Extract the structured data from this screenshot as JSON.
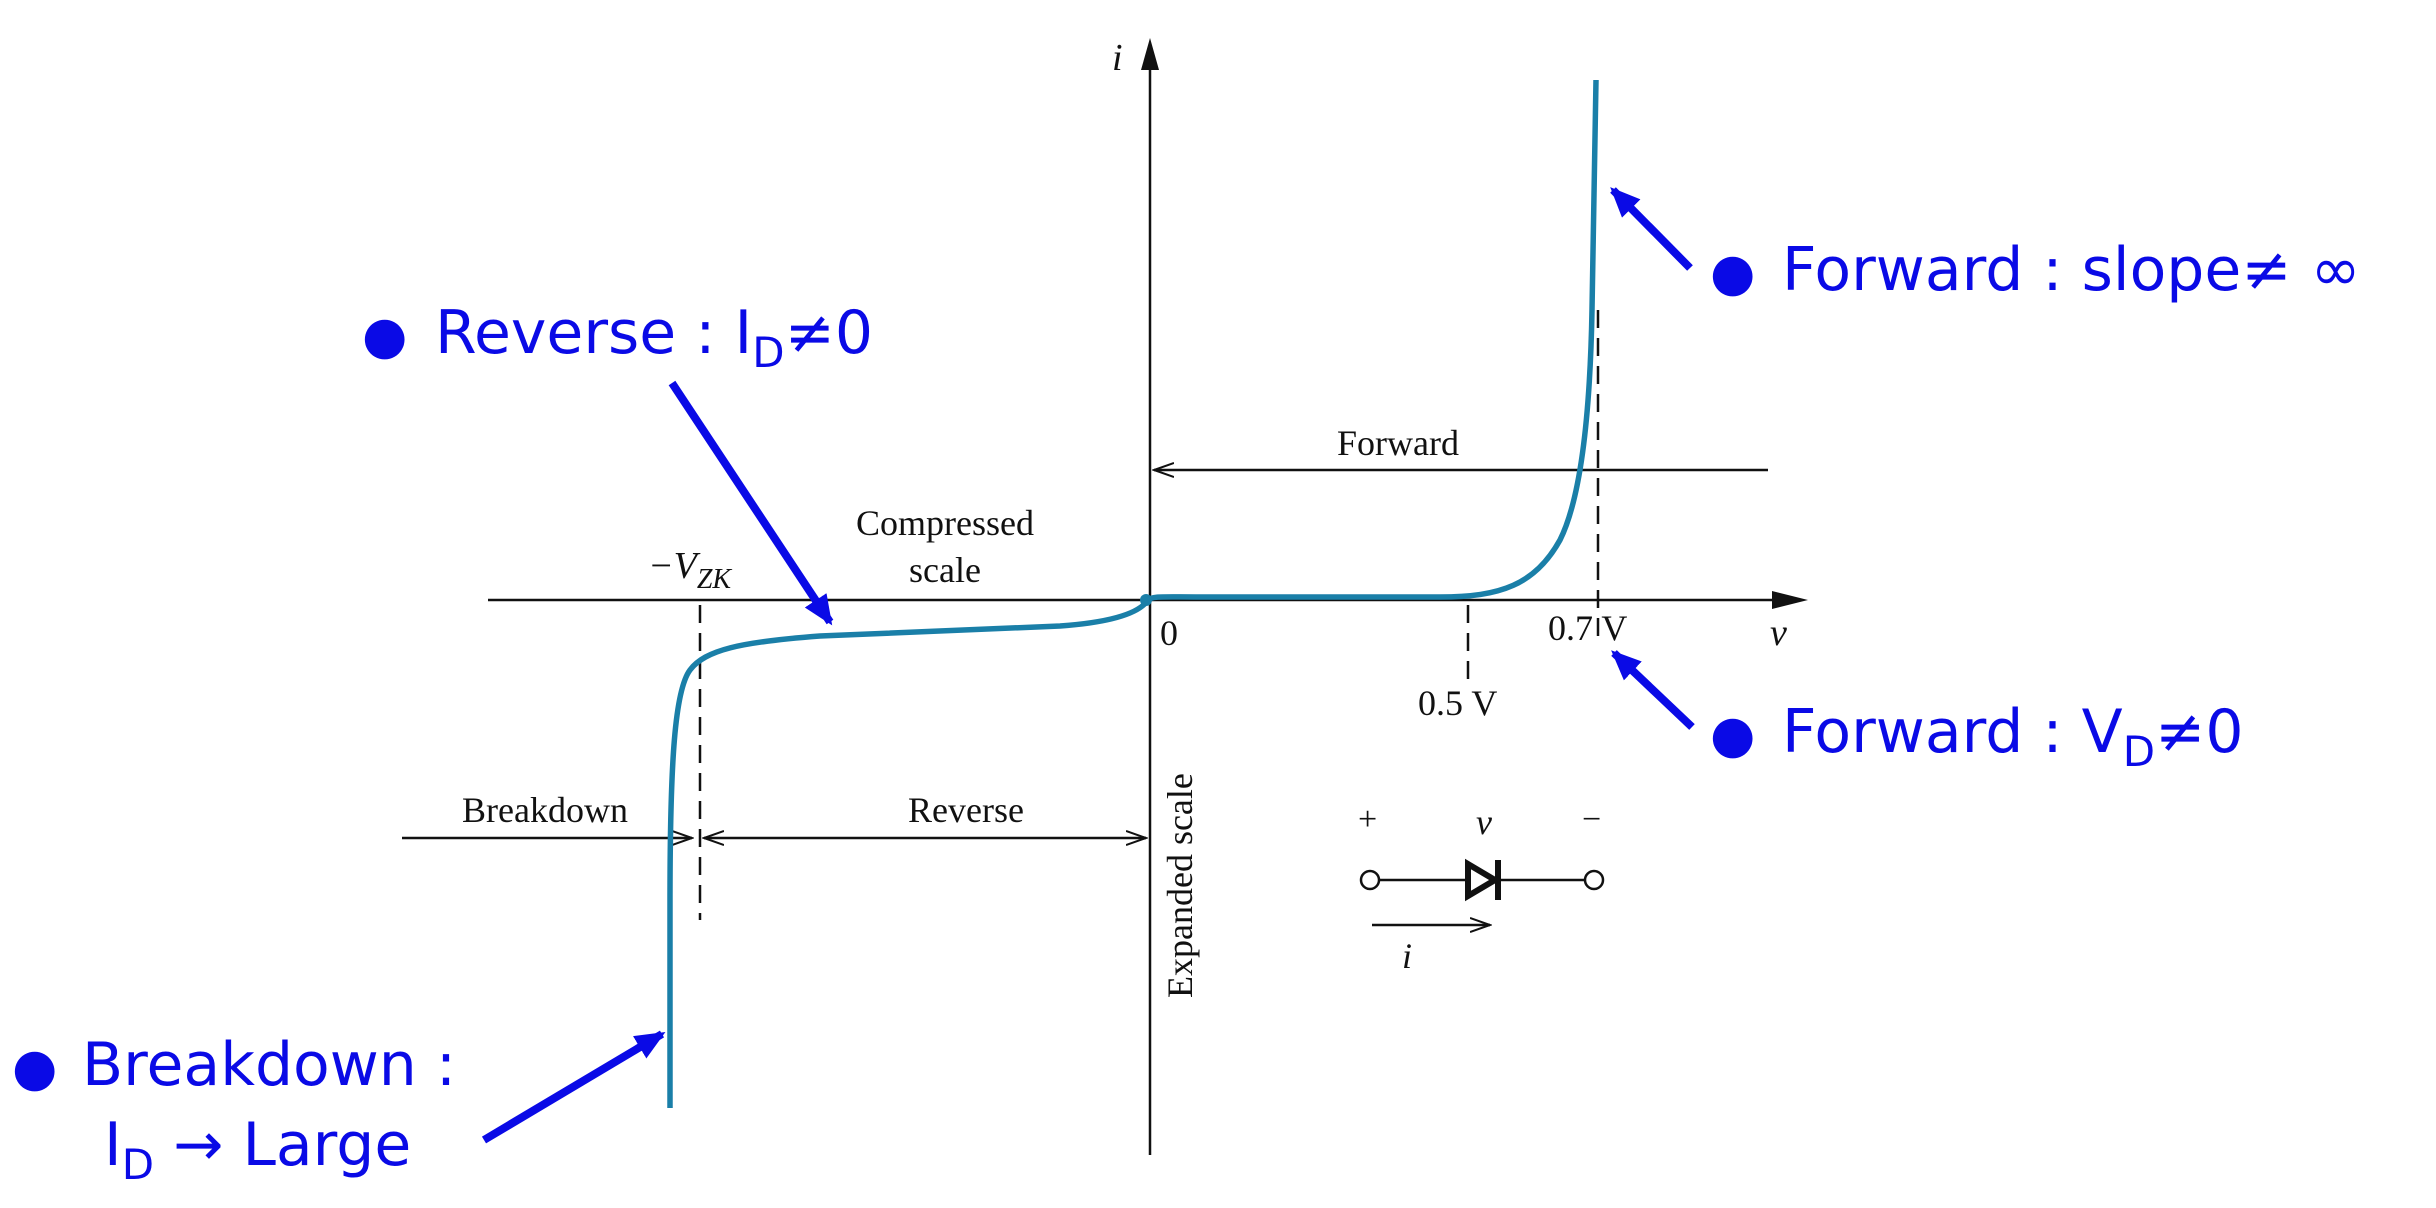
{
  "figure": {
    "axis_labels": {
      "current": "i",
      "voltage": "v"
    },
    "origin_label": "0",
    "tick_0_5": "0.5 V",
    "tick_0_7": "0.7 V",
    "vzk_minus": "−V",
    "vzk_sub": "ZK",
    "compressed_line1": "Compressed",
    "compressed_line2": "scale",
    "expanded_scale": "Expanded scale",
    "forward_region": "Forward",
    "reverse_region": "Reverse",
    "breakdown_region": "Breakdown",
    "symbol": {
      "plus": "+",
      "minus": "−",
      "v": "v",
      "i": "i"
    }
  },
  "annotations": {
    "forward_slope": {
      "bullet": "●",
      "text": "Forward : slope≠ ∞"
    },
    "reverse": {
      "bullet": "●",
      "main": "Reverse : I",
      "sub": "D",
      "rest": "≠0"
    },
    "forward_vd": {
      "bullet": "●",
      "main": "Forward : V",
      "sub": "D",
      "rest": "≠0"
    },
    "breakdown": {
      "bullet": "●",
      "line1": "Breakdown :",
      "line2_main": "I",
      "line2_sub": "D",
      "line2_rest": " → Large"
    }
  },
  "colors": {
    "curve": "#1a7fa8",
    "annotation": "#0a0ae6",
    "ink": "#111111"
  }
}
